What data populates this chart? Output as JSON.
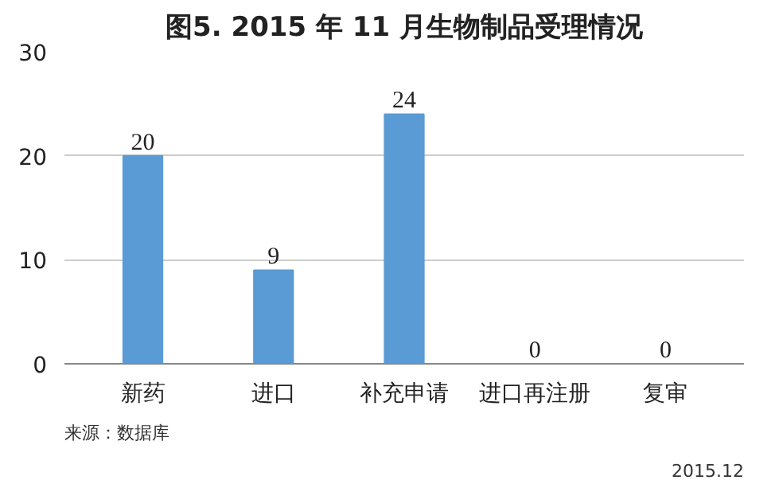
{
  "chart_data": {
    "type": "bar",
    "title": "图5. 2015 年 11 月生物制品受理情况",
    "categories": [
      "新药",
      "进口",
      "补充申请",
      "进口再注册",
      "复审"
    ],
    "values": [
      20,
      9,
      24,
      0,
      0
    ],
    "color": "#5b9bd5",
    "ylim": [
      0,
      30
    ],
    "yticks": [
      0,
      10,
      20,
      30
    ],
    "grid": "y",
    "data_labels": true,
    "annotations": [
      "来源：数据库",
      "2015.12"
    ]
  }
}
